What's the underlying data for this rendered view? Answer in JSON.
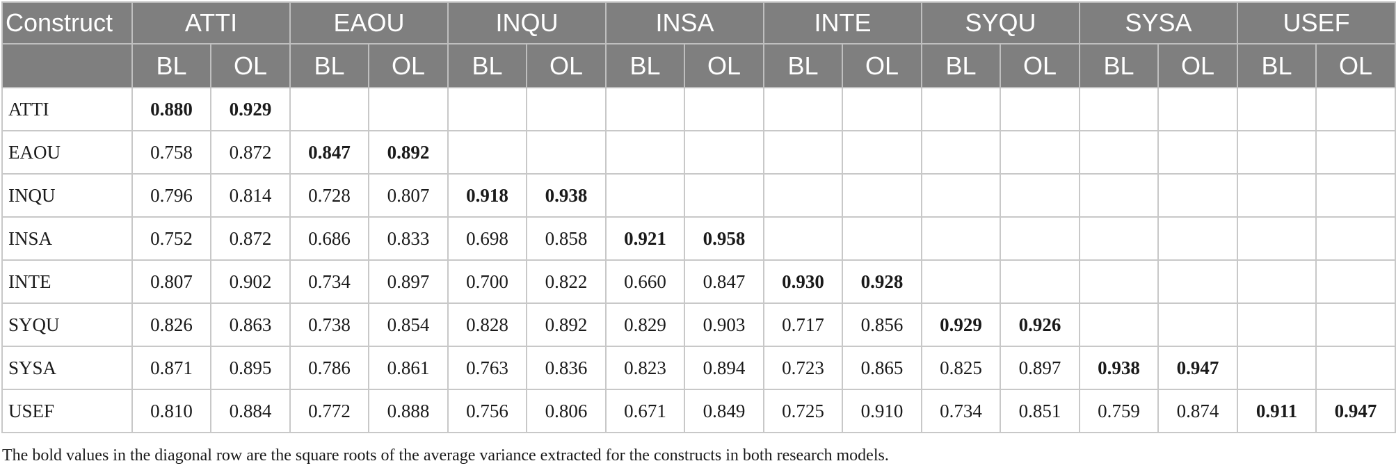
{
  "table": {
    "corner_label": "Construct",
    "constructs": [
      "ATTI",
      "EAOU",
      "INQU",
      "INSA",
      "INTE",
      "SYQU",
      "SYSA",
      "USEF"
    ],
    "sub_labels": [
      "BL",
      "OL"
    ],
    "rows": [
      {
        "label": "ATTI",
        "values": [
          "0.880",
          "0.929"
        ]
      },
      {
        "label": "EAOU",
        "values": [
          "0.758",
          "0.872",
          "0.847",
          "0.892"
        ]
      },
      {
        "label": "INQU",
        "values": [
          "0.796",
          "0.814",
          "0.728",
          "0.807",
          "0.918",
          "0.938"
        ]
      },
      {
        "label": "INSA",
        "values": [
          "0.752",
          "0.872",
          "0.686",
          "0.833",
          "0.698",
          "0.858",
          "0.921",
          "0.958"
        ]
      },
      {
        "label": "INTE",
        "values": [
          "0.807",
          "0.902",
          "0.734",
          "0.897",
          "0.700",
          "0.822",
          "0.660",
          "0.847",
          "0.930",
          "0.928"
        ]
      },
      {
        "label": "SYQU",
        "values": [
          "0.826",
          "0.863",
          "0.738",
          "0.854",
          "0.828",
          "0.892",
          "0.829",
          "0.903",
          "0.717",
          "0.856",
          "0.929",
          "0.926"
        ]
      },
      {
        "label": "SYSA",
        "values": [
          "0.871",
          "0.895",
          "0.786",
          "0.861",
          "0.763",
          "0.836",
          "0.823",
          "0.894",
          "0.723",
          "0.865",
          "0.825",
          "0.897",
          "0.938",
          "0.947"
        ]
      },
      {
        "label": "USEF",
        "values": [
          "0.810",
          "0.884",
          "0.772",
          "0.888",
          "0.756",
          "0.806",
          "0.671",
          "0.849",
          "0.725",
          "0.910",
          "0.734",
          "0.851",
          "0.759",
          "0.874",
          "0.911",
          "0.947"
        ]
      }
    ]
  },
  "note": "The bold values in the diagonal row are the square roots of the average variance extracted for the constructs in both research models."
}
